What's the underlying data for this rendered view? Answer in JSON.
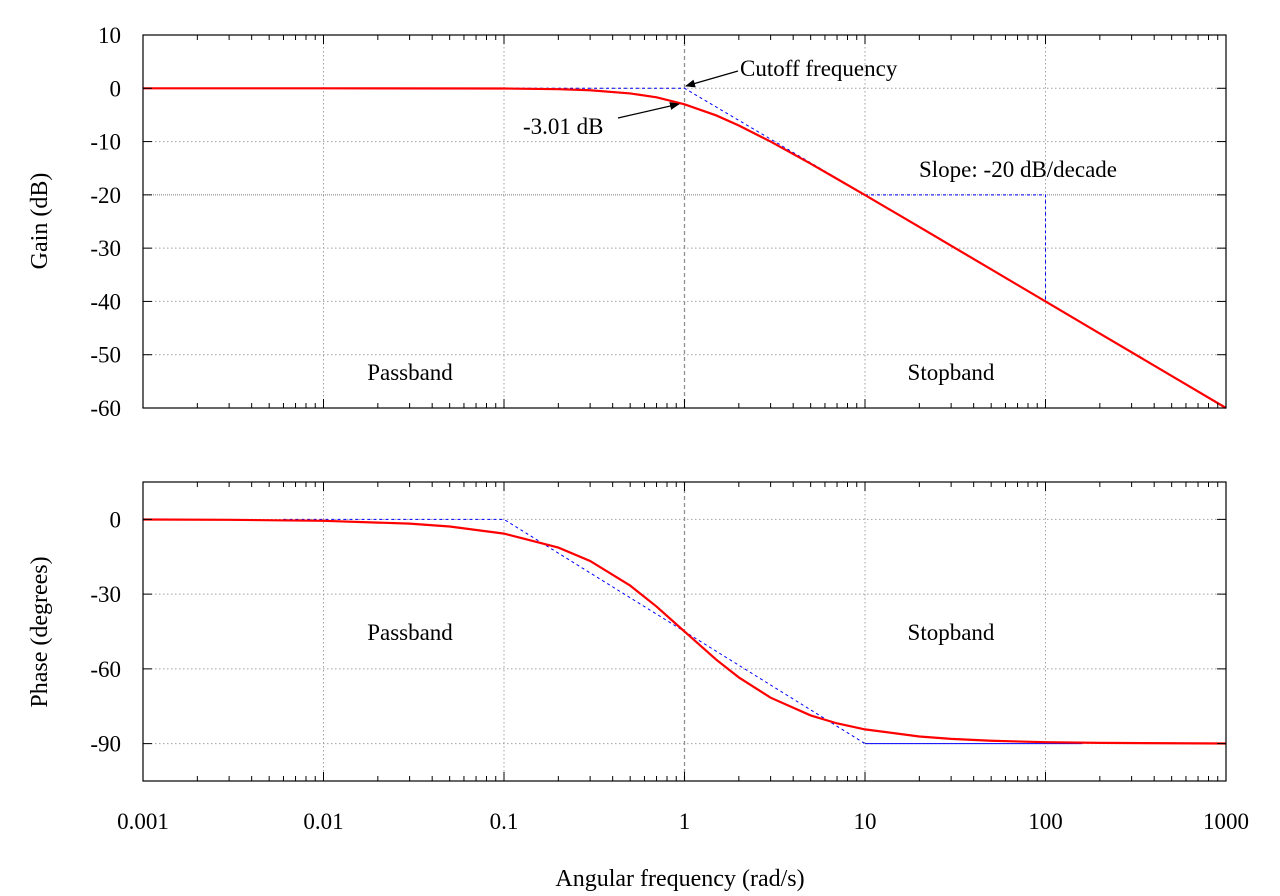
{
  "chart_data": [
    {
      "type": "line",
      "x_scale": "log",
      "xlim": [
        0.001,
        1000
      ],
      "ylim": [
        -60,
        10
      ],
      "ylabel": "Gain (dB)",
      "xlabel": "",
      "grid": true,
      "x_ticks": [
        "0.001",
        "0.01",
        "0.1",
        "1",
        "10",
        "100",
        "1000"
      ],
      "y_ticks": [
        "10",
        "0",
        "-10",
        "-20",
        "-30",
        "-40",
        "-50",
        "-60"
      ],
      "series": [
        {
          "color": "#ff0000",
          "style": "solid",
          "x": [
            0.001,
            0.01,
            0.1,
            0.2,
            0.3,
            0.5,
            0.7,
            1,
            1.5,
            2,
            3,
            5,
            7,
            10,
            20,
            50,
            100,
            200,
            500,
            1000
          ],
          "y": [
            0,
            0,
            -0.04,
            -0.17,
            -0.37,
            -0.97,
            -1.7,
            -3.01,
            -5.1,
            -6.99,
            -10,
            -14.15,
            -17,
            -20.04,
            -26.02,
            -33.98,
            -40,
            -46.02,
            -53.98,
            -60
          ]
        },
        {
          "color": "#0000ff",
          "style": "dashed",
          "x": [
            0.1,
            1,
            1000
          ],
          "y": [
            0,
            0,
            -60
          ]
        },
        {
          "color": "#0000ff",
          "style": "dashed",
          "x": [
            10,
            100,
            100
          ],
          "y": [
            -20,
            -20,
            -40
          ]
        }
      ],
      "annotations": [
        {
          "text": "Cutoff frequency",
          "x": 1,
          "y": 0
        },
        {
          "text": "-3.01 dB",
          "x": 1,
          "y": -3.01
        },
        {
          "text": "Slope: -20 dB/decade",
          "x": 30,
          "y": -20
        },
        {
          "text": "Passband",
          "x": 0.01,
          "y": -53
        },
        {
          "text": "Stopband",
          "x": 10,
          "y": -53
        }
      ]
    },
    {
      "type": "line",
      "x_scale": "log",
      "xlim": [
        0.001,
        1000
      ],
      "ylim": [
        -105,
        15
      ],
      "ylabel": "Phase (degrees)",
      "xlabel": "Angular frequency (rad/s)",
      "grid": true,
      "x_ticks": [
        "0.001",
        "0.01",
        "0.1",
        "1",
        "10",
        "100",
        "1000"
      ],
      "y_ticks": [
        "0",
        "-30",
        "-60",
        "-90"
      ],
      "series": [
        {
          "color": "#ff0000",
          "style": "solid",
          "x": [
            0.001,
            0.003,
            0.01,
            0.03,
            0.05,
            0.1,
            0.2,
            0.3,
            0.5,
            0.7,
            1,
            1.5,
            2,
            3,
            5,
            7,
            10,
            20,
            30,
            50,
            100,
            200,
            1000
          ],
          "y": [
            -0.06,
            -0.17,
            -0.57,
            -1.72,
            -2.86,
            -5.71,
            -11.31,
            -16.7,
            -26.57,
            -34.99,
            -45,
            -56.31,
            -63.43,
            -71.57,
            -78.69,
            -81.87,
            -84.29,
            -87.14,
            -88.09,
            -88.85,
            -89.43,
            -89.71,
            -89.94
          ]
        },
        {
          "color": "#0000ff",
          "style": "dashed",
          "x": [
            0.006,
            0.1,
            10
          ],
          "y": [
            0,
            0,
            -90
          ]
        },
        {
          "color": "#0000ff",
          "style": "solid",
          "x": [
            10,
            160
          ],
          "y": [
            -90,
            -90
          ]
        }
      ],
      "annotations": [
        {
          "text": "Passband",
          "x": 0.01,
          "y": -45
        },
        {
          "text": "Stopband",
          "x": 10,
          "y": -45
        }
      ]
    }
  ]
}
